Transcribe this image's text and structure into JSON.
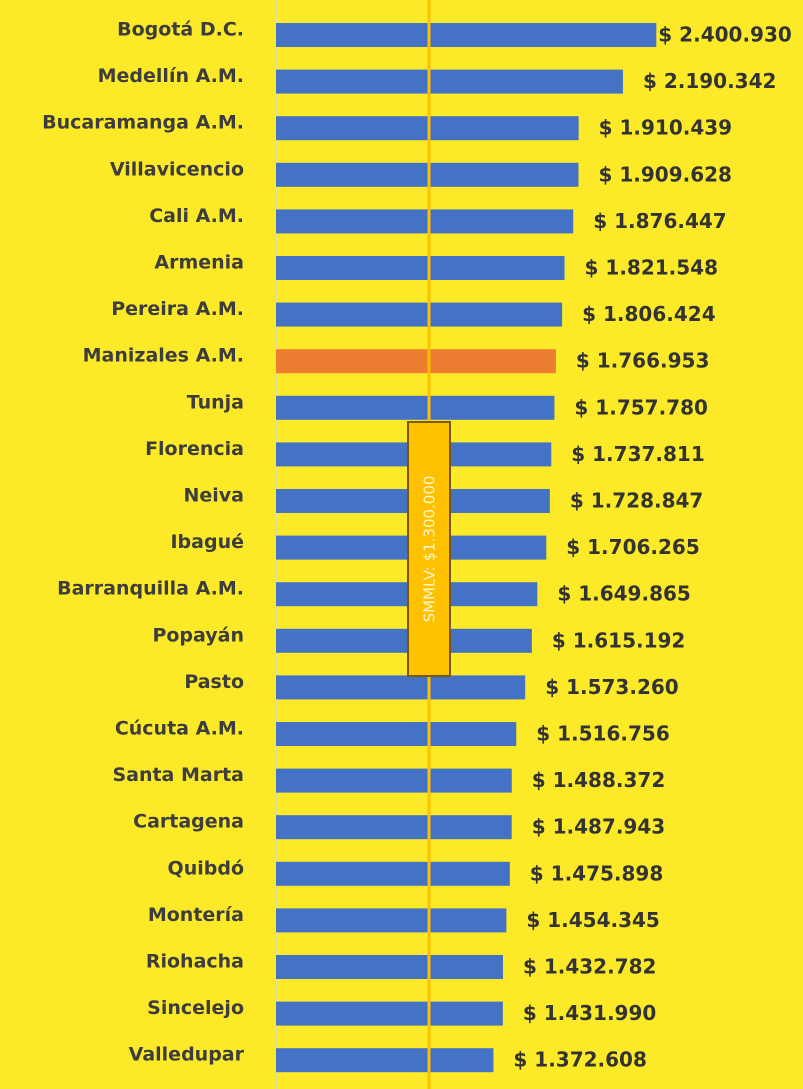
{
  "chart_data": {
    "type": "bar",
    "orientation": "horizontal",
    "categories": [
      "Bogotá D.C.",
      "Medellín A.M.",
      "Bucaramanga A.M.",
      "Villavicencio",
      "Cali A.M.",
      "Armenia",
      "Pereira A.M.",
      "Manizales A.M.",
      "Tunja",
      "Florencia",
      "Neiva",
      "Ibagué",
      "Barranquilla A.M.",
      "Popayán",
      "Pasto",
      "Cúcuta A.M.",
      "Santa Marta",
      "Cartagena",
      "Quibdó",
      "Montería",
      "Riohacha",
      "Sincelejo",
      "Valledupar"
    ],
    "values": [
      2400930,
      2190342,
      1910439,
      1909628,
      1876447,
      1821548,
      1806424,
      1766953,
      1757780,
      1737811,
      1728847,
      1706265,
      1649865,
      1615192,
      1573260,
      1516756,
      1488372,
      1487943,
      1475898,
      1454345,
      1432782,
      1431990,
      1372608
    ],
    "value_labels": [
      "$ 2.400.930",
      "$ 2.190.342",
      "$ 1.910.439",
      "$ 1.909.628",
      "$ 1.876.447",
      "$ 1.821.548",
      "$ 1.806.424",
      "$ 1.766.953",
      "$ 1.757.780",
      "$ 1.737.811",
      "$ 1.728.847",
      "$ 1.706.265",
      "$ 1.649.865",
      "$ 1.615.192",
      "$ 1.573.260",
      "$ 1.516.756",
      "$ 1.488.372",
      "$ 1.487.943",
      "$ 1.475.898",
      "$ 1.454.345",
      "$ 1.432.782",
      "$ 1.431.990",
      "$ 1.372.608"
    ],
    "colors": [
      "#4472c4",
      "#4472c4",
      "#4472c4",
      "#4472c4",
      "#4472c4",
      "#4472c4",
      "#4472c4",
      "#ed7d31",
      "#4472c4",
      "#4472c4",
      "#4472c4",
      "#4472c4",
      "#4472c4",
      "#4472c4",
      "#4472c4",
      "#4472c4",
      "#4472c4",
      "#4472c4",
      "#4472c4",
      "#4472c4",
      "#4472c4",
      "#4472c4",
      "#4472c4"
    ],
    "xlim": [
      0,
      2500000
    ],
    "annotation": "SMMLV: $1.300.000"
  }
}
